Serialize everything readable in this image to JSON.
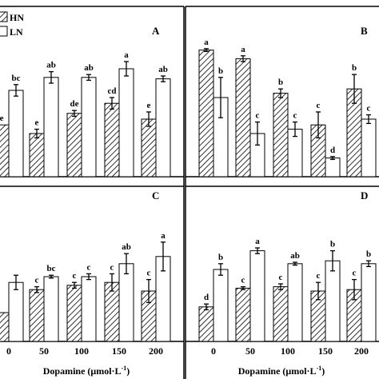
{
  "chart_data": [
    {
      "panel": "A",
      "type": "bar",
      "categories": [
        "",
        "50",
        "100",
        "150",
        "200"
      ],
      "ylim": [
        0,
        100
      ],
      "legend": {
        "placement": "top-left",
        "entries": [
          "HN",
          "LN"
        ]
      },
      "series": [
        {
          "name": "HN",
          "values": [
            36,
            30,
            44,
            51,
            40
          ],
          "errors": [
            0,
            3,
            2,
            4,
            5
          ],
          "letters": [
            "e",
            "e",
            "de",
            "cd",
            "e"
          ]
        },
        {
          "name": "LN",
          "values": [
            60,
            69,
            69,
            75,
            68
          ],
          "errors": [
            4,
            4,
            2,
            5,
            2
          ],
          "letters": [
            "bc",
            "ab",
            "ab",
            "a",
            "ab"
          ]
        }
      ]
    },
    {
      "panel": "B",
      "type": "bar",
      "categories": [
        "",
        "",
        "",
        "",
        ""
      ],
      "ylim": [
        0,
        100
      ],
      "series": [
        {
          "name": "HN",
          "values": [
            88,
            82,
            58,
            36,
            61
          ],
          "errors": [
            1,
            2,
            3,
            9,
            10
          ],
          "letters": [
            "a",
            "a",
            "b",
            "c",
            "b"
          ]
        },
        {
          "name": "LN",
          "values": [
            55,
            30,
            33,
            13,
            40
          ],
          "errors": [
            14,
            8,
            5,
            1,
            3
          ],
          "letters": [
            "b",
            "c",
            "c",
            "d",
            "c"
          ]
        }
      ]
    },
    {
      "panel": "C",
      "type": "bar",
      "categories": [
        "0",
        "50",
        "100",
        "150",
        "200"
      ],
      "ylim": [
        0,
        100
      ],
      "xlabel": "Dopamine (μmol·L",
      "xlabel_sup": "-1",
      "xlabel_end": ")",
      "series": [
        {
          "name": "HN",
          "values": [
            20,
            36,
            39,
            41,
            35
          ],
          "errors": [
            0,
            2,
            2,
            6,
            8
          ],
          "letters": [
            "",
            "c",
            "c",
            "c",
            "c"
          ]
        },
        {
          "name": "LN",
          "values": [
            41,
            45,
            45,
            54,
            59
          ],
          "errors": [
            5,
            1,
            2,
            7,
            10
          ],
          "letters": [
            "",
            "bc",
            "c",
            "ab",
            "a"
          ]
        }
      ]
    },
    {
      "panel": "D",
      "type": "bar",
      "categories": [
        "0",
        "50",
        "100",
        "150",
        "200"
      ],
      "ylim": [
        0,
        100
      ],
      "xlabel": "Dopamine (μmol·L",
      "xlabel_sup": "-1",
      "xlabel_end": ")",
      "series": [
        {
          "name": "HN",
          "values": [
            24,
            37,
            38,
            35,
            36
          ],
          "errors": [
            2,
            1,
            2,
            6,
            7
          ],
          "letters": [
            "d",
            "c",
            "c",
            "c",
            "c"
          ]
        },
        {
          "name": "LN",
          "values": [
            50,
            63,
            54,
            56,
            54
          ],
          "errors": [
            4,
            2,
            1,
            7,
            2
          ],
          "letters": [
            "b",
            "a",
            "ab",
            "b",
            "b"
          ]
        }
      ]
    }
  ]
}
